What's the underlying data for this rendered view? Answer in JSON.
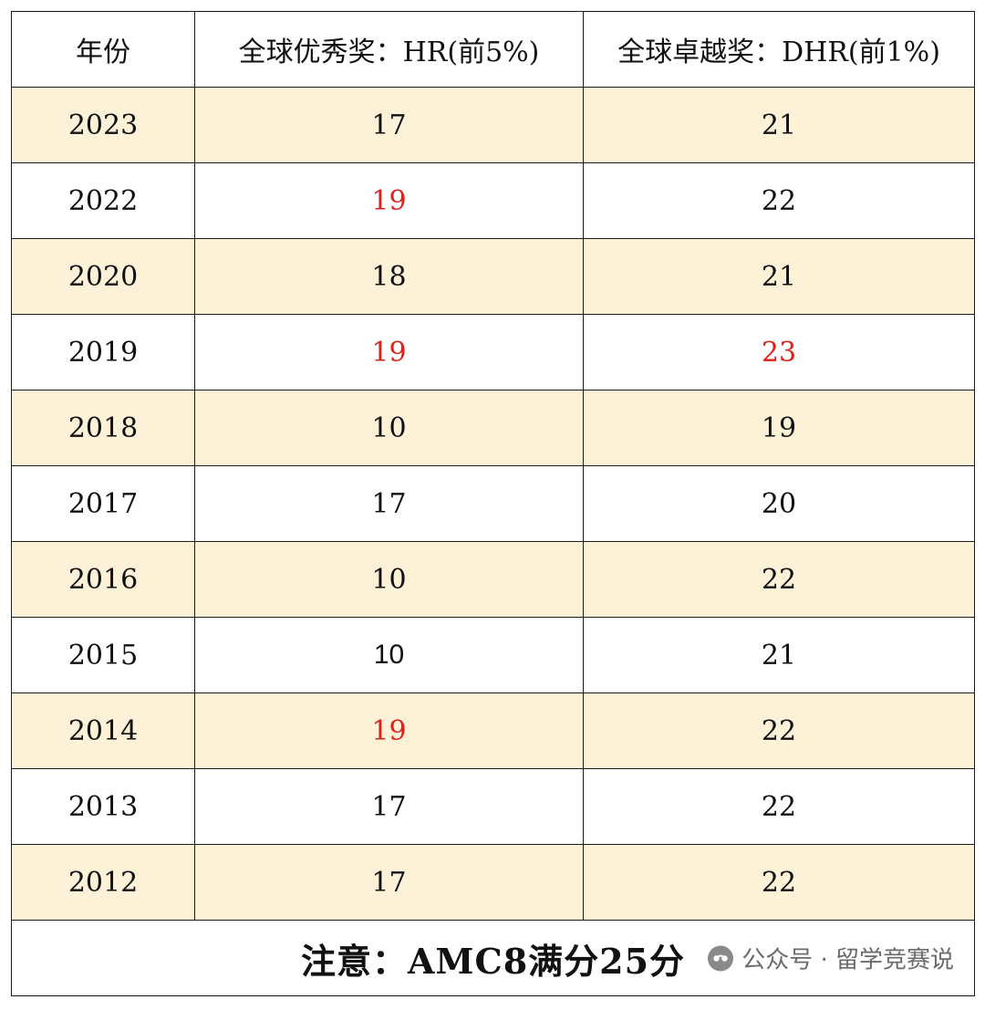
{
  "table": {
    "headers": [
      "年份",
      "全球优秀奖：HR(前5%)",
      "全球卓越奖：DHR(前1%)"
    ],
    "rows": [
      {
        "year": "2023",
        "hr": "17",
        "dhr": "21"
      },
      {
        "year": "2022",
        "hr": "19",
        "dhr": "22"
      },
      {
        "year": "2020",
        "hr": "18",
        "dhr": "21"
      },
      {
        "year": "2019",
        "hr": "19",
        "dhr": "23"
      },
      {
        "year": "2018",
        "hr": "10",
        "dhr": "19"
      },
      {
        "year": "2017",
        "hr": "17",
        "dhr": "20"
      },
      {
        "year": "2016",
        "hr": "10",
        "dhr": "22"
      },
      {
        "year": "2015",
        "hr": "10",
        "dhr": "21"
      },
      {
        "year": "2014",
        "hr": "19",
        "dhr": "22"
      },
      {
        "year": "2013",
        "hr": "17",
        "dhr": "22"
      },
      {
        "year": "2012",
        "hr": "17",
        "dhr": "22"
      }
    ],
    "note": "注意：AMC8满分25分"
  },
  "watermark": {
    "text": "公众号 · 留学竞赛说",
    "icon": "wechat-official-account-icon"
  },
  "colors": {
    "row_shade": "#fdf1d8",
    "highlight_red": "#e0201b",
    "border": "#1a1a1a"
  }
}
